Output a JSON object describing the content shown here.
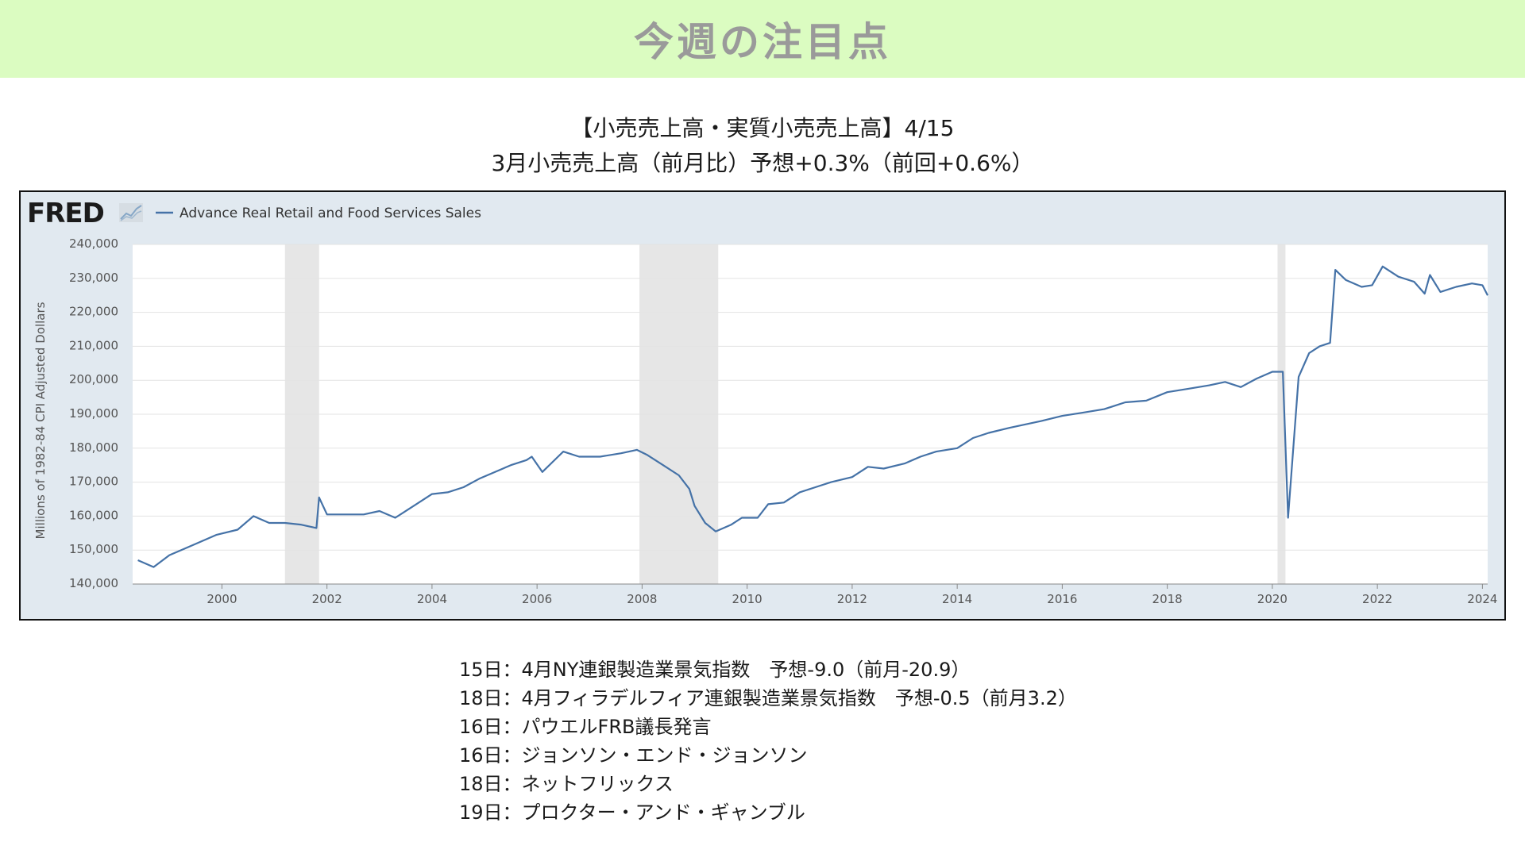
{
  "header": {
    "title": "今週の注目点"
  },
  "chart_title": {
    "line1": "【小売売上高・実質小売売上高】4/15",
    "line2": "3月小売売上高（前月比）予想+0.3%（前回+0.6%）"
  },
  "chart_data": {
    "type": "line",
    "brand": "FRED",
    "series": [
      {
        "name": "Advance Real Retail and Food Services Sales",
        "color": "#4572a7",
        "points": [
          [
            1998.4,
            147000
          ],
          [
            1998.7,
            145000
          ],
          [
            1999.0,
            148500
          ],
          [
            1999.3,
            150500
          ],
          [
            1999.6,
            152500
          ],
          [
            1999.9,
            154500
          ],
          [
            2000.3,
            156000
          ],
          [
            2000.6,
            160000
          ],
          [
            2000.9,
            158000
          ],
          [
            2001.2,
            158000
          ],
          [
            2001.5,
            157500
          ],
          [
            2001.8,
            156500
          ],
          [
            2001.85,
            165500
          ],
          [
            2002.0,
            160500
          ],
          [
            2002.4,
            160500
          ],
          [
            2002.7,
            160500
          ],
          [
            2003.0,
            161500
          ],
          [
            2003.3,
            159500
          ],
          [
            2003.6,
            162500
          ],
          [
            2004.0,
            166500
          ],
          [
            2004.3,
            167000
          ],
          [
            2004.6,
            168500
          ],
          [
            2004.9,
            171000
          ],
          [
            2005.2,
            173000
          ],
          [
            2005.5,
            175000
          ],
          [
            2005.8,
            176500
          ],
          [
            2005.9,
            177500
          ],
          [
            2006.1,
            173000
          ],
          [
            2006.4,
            177500
          ],
          [
            2006.5,
            179000
          ],
          [
            2006.8,
            177500
          ],
          [
            2007.2,
            177500
          ],
          [
            2007.6,
            178500
          ],
          [
            2007.9,
            179500
          ],
          [
            2008.1,
            178000
          ],
          [
            2008.4,
            175000
          ],
          [
            2008.7,
            172000
          ],
          [
            2008.9,
            168000
          ],
          [
            2009.0,
            163000
          ],
          [
            2009.2,
            158000
          ],
          [
            2009.4,
            155500
          ],
          [
            2009.7,
            157500
          ],
          [
            2009.9,
            159500
          ],
          [
            2010.2,
            159500
          ],
          [
            2010.4,
            163500
          ],
          [
            2010.7,
            164000
          ],
          [
            2011.0,
            167000
          ],
          [
            2011.3,
            168500
          ],
          [
            2011.6,
            170000
          ],
          [
            2012.0,
            171500
          ],
          [
            2012.3,
            174500
          ],
          [
            2012.6,
            174000
          ],
          [
            2013.0,
            175500
          ],
          [
            2013.3,
            177500
          ],
          [
            2013.6,
            179000
          ],
          [
            2014.0,
            180000
          ],
          [
            2014.3,
            183000
          ],
          [
            2014.6,
            184500
          ],
          [
            2015.0,
            186000
          ],
          [
            2015.3,
            187000
          ],
          [
            2015.6,
            188000
          ],
          [
            2016.0,
            189500
          ],
          [
            2016.4,
            190500
          ],
          [
            2016.8,
            191500
          ],
          [
            2017.2,
            193500
          ],
          [
            2017.6,
            194000
          ],
          [
            2018.0,
            196500
          ],
          [
            2018.4,
            197500
          ],
          [
            2018.8,
            198500
          ],
          [
            2019.1,
            199500
          ],
          [
            2019.4,
            198000
          ],
          [
            2019.7,
            200500
          ],
          [
            2020.0,
            202500
          ],
          [
            2020.2,
            202500
          ],
          [
            2020.3,
            159500
          ],
          [
            2020.5,
            201000
          ],
          [
            2020.7,
            208000
          ],
          [
            2020.9,
            210000
          ],
          [
            2021.1,
            211000
          ],
          [
            2021.2,
            232500
          ],
          [
            2021.4,
            229500
          ],
          [
            2021.7,
            227500
          ],
          [
            2021.9,
            228000
          ],
          [
            2022.1,
            233500
          ],
          [
            2022.4,
            230500
          ],
          [
            2022.7,
            229000
          ],
          [
            2022.9,
            225500
          ],
          [
            2023.0,
            231000
          ],
          [
            2023.2,
            226000
          ],
          [
            2023.5,
            227500
          ],
          [
            2023.8,
            228500
          ],
          [
            2024.0,
            228000
          ],
          [
            2024.1,
            225000
          ]
        ]
      }
    ],
    "recessions": [
      [
        2001.2,
        2001.85
      ],
      [
        2007.95,
        2009.45
      ],
      [
        2020.1,
        2020.25
      ]
    ],
    "xlim": [
      1998.3,
      2024.1
    ],
    "ylim": [
      140000,
      240000
    ],
    "x_ticks": [
      "2000",
      "2002",
      "2004",
      "2006",
      "2008",
      "2010",
      "2012",
      "2014",
      "2016",
      "2018",
      "2020",
      "2022",
      "2024"
    ],
    "y_ticks": [
      "240,000",
      "230,000",
      "220,000",
      "210,000",
      "200,000",
      "190,000",
      "180,000",
      "170,000",
      "160,000",
      "150,000",
      "140,000"
    ],
    "ylabel": "Millions of 1982-84 CPI Adjusted Dollars",
    "legend": "top-left",
    "grid": true,
    "recession_color": "#e6e6e6",
    "plot_background": "#ffffff",
    "frame_background": "#e1e9f0"
  },
  "events": [
    "15日：4月NY連銀製造業景気指数　予想-9.0（前月-20.9）",
    "18日：4月フィラデルフィア連銀製造業景気指数　予想-0.5（前月3.2）",
    "16日：パウエルFRB議長発言",
    "16日：ジョンソン・エンド・ジョンソン",
    "18日：ネットフリックス",
    "19日：プロクター・アンド・ギャンブル"
  ]
}
